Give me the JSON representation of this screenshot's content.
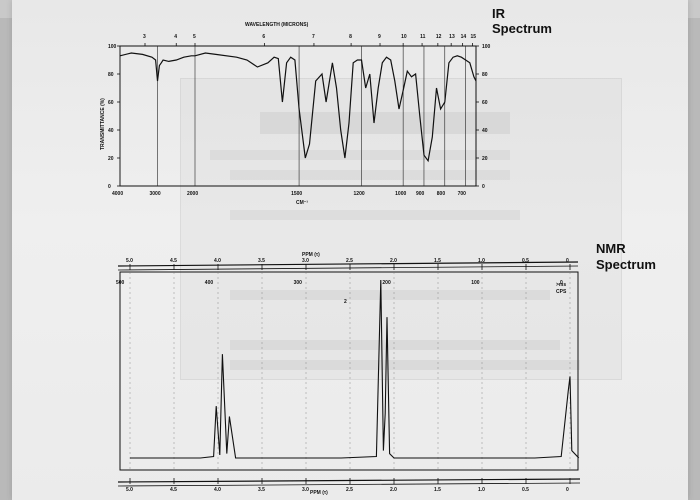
{
  "ir_heading_line1": "IR",
  "ir_heading_line2": "Spectrum",
  "nmr_heading_line1": "NMR",
  "nmr_heading_line2": "Spectrum",
  "colors": {
    "ink": "#111111",
    "paper": "#ececec",
    "background": "#b9b9b9"
  },
  "chart_data": [
    {
      "type": "line",
      "title": "",
      "top_axis_label": "WAVELENGTH (MICRONS)",
      "top_ticks": [
        "3",
        "4",
        "5",
        "6",
        "7",
        "8",
        "9",
        "10",
        "11",
        "12",
        "13",
        "14",
        "15"
      ],
      "xlabel": "CM⁻¹",
      "x_ticks": [
        "4000",
        "3000",
        "2000",
        "1500",
        "1200",
        "1000",
        "900",
        "800",
        "700"
      ],
      "ylabel": "TRANSMITTANCE (%)",
      "y_ticks": [
        "0",
        "20",
        "40",
        "60",
        "80",
        "100"
      ],
      "ylim": [
        0,
        100
      ],
      "right_axis_ticks": [
        "0",
        "20",
        "40",
        "60",
        "80",
        "100"
      ],
      "series": [
        {
          "x": [
            4000,
            3700,
            3400,
            3150,
            3050,
            3000,
            2950,
            2900,
            2850,
            2700,
            2500,
            2300,
            2100,
            2000,
            1950,
            1900,
            1800,
            1750,
            1700,
            1650,
            1620,
            1600,
            1580,
            1560,
            1540,
            1520,
            1500,
            1470,
            1450,
            1420,
            1390,
            1370,
            1340,
            1320,
            1300,
            1280,
            1260,
            1240,
            1220,
            1200,
            1180,
            1160,
            1140,
            1120,
            1100,
            1080,
            1060,
            1040,
            1020,
            1000,
            980,
            960,
            940,
            920,
            900,
            880,
            860,
            840,
            820,
            800,
            780,
            760,
            740,
            720,
            700,
            680,
            660,
            650
          ],
          "y": [
            93,
            95,
            94,
            92,
            90,
            75,
            86,
            88,
            90,
            89,
            90,
            92,
            93,
            93,
            95,
            94,
            92,
            90,
            85,
            88,
            92,
            91,
            60,
            88,
            92,
            90,
            55,
            20,
            30,
            75,
            80,
            60,
            88,
            70,
            40,
            20,
            45,
            88,
            90,
            90,
            70,
            80,
            45,
            70,
            88,
            92,
            90,
            75,
            55,
            68,
            82,
            78,
            80,
            50,
            22,
            18,
            35,
            70,
            55,
            60,
            88,
            92,
            93,
            92,
            90,
            88,
            78,
            75
          ]
        }
      ]
    },
    {
      "type": "line",
      "title": "",
      "xlabel": "PPM (τ)",
      "xlabel_bottom": "PPM (τ)",
      "top_ticks": [
        "5.0",
        "4.5",
        "4.0",
        "3.5",
        "3.0",
        "2.5",
        "2.0",
        "1.5",
        "1.0",
        "0.5",
        "0"
      ],
      "hz_labels": [
        "500",
        "400",
        "300",
        "200",
        "100",
        "0"
      ],
      "reference_label": ">ms\nCPS",
      "peak_annotation": "2",
      "series": [
        {
          "ppm": [
            5.0,
            4.6,
            4.2,
            4.05,
            4.02,
            3.98,
            3.95,
            3.9,
            3.87,
            3.8,
            3.4,
            3.0,
            2.6,
            2.2,
            2.15,
            2.12,
            2.1,
            2.08,
            2.05,
            2.0,
            1.6,
            1.2,
            0.8,
            0.4,
            0.1,
            0.02,
            0.0,
            -0.02,
            -0.1
          ],
          "intensity": [
            0,
            0,
            0,
            1,
            35,
            2,
            70,
            3,
            28,
            0,
            0,
            0,
            0,
            1,
            120,
            5,
            30,
            95,
            3,
            0,
            0,
            0,
            0,
            0,
            1,
            45,
            55,
            5,
            0
          ]
        }
      ]
    }
  ]
}
